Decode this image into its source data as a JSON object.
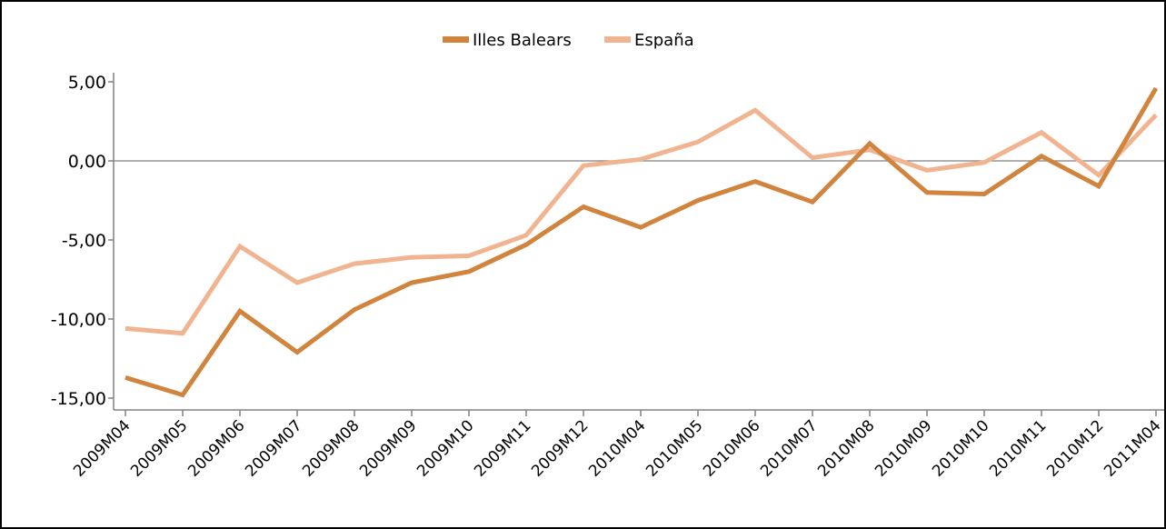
{
  "chart_data": {
    "type": "line",
    "title": "",
    "xlabel": "",
    "ylabel": "",
    "categories": [
      "2009M04",
      "2009M05",
      "2009M06",
      "2009M07",
      "2009M08",
      "2009M09",
      "2009M10",
      "2009M11",
      "2009M12",
      "2010M04",
      "2010M05",
      "2010M06",
      "2010M07",
      "2010M08",
      "2010M09",
      "2010M10",
      "2010M11",
      "2010M12",
      "2011M04"
    ],
    "series": [
      {
        "name": "Illes Balears",
        "color": "#D0843E",
        "values": [
          -13.7,
          -14.8,
          -9.5,
          -12.1,
          -9.4,
          -7.7,
          -7.0,
          -5.3,
          -2.9,
          -4.2,
          -2.5,
          -1.3,
          -2.6,
          1.1,
          -2.0,
          -2.1,
          0.3,
          -1.6,
          4.6
        ]
      },
      {
        "name": "España",
        "color": "#F0B490",
        "values": [
          -10.6,
          -10.9,
          -5.4,
          -7.7,
          -6.5,
          -6.1,
          -6.0,
          -4.7,
          -0.3,
          0.1,
          1.2,
          3.2,
          0.2,
          0.7,
          -0.6,
          -0.1,
          1.8,
          -0.9,
          2.9
        ]
      }
    ],
    "y_ticks": [
      "5,00",
      "0,00",
      "-5,00",
      "-10,00",
      "-15,00"
    ],
    "y_tick_values": [
      5,
      0,
      -5,
      -10,
      -15
    ],
    "ylim": [
      -15.5,
      5.5
    ],
    "zero_line": true,
    "grid": false,
    "legend_position": "top-center"
  }
}
